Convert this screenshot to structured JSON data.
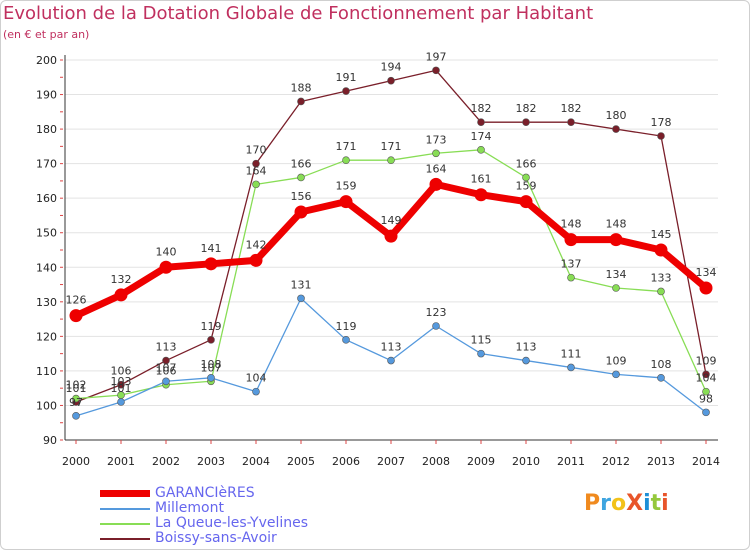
{
  "header": {
    "title": "Evolution de la Dotation Globale de Fonctionnement par Habitant",
    "subtitle": "(en € et par an)"
  },
  "logo": {
    "text": "ProXiti",
    "colors": [
      "#f08a1e",
      "#3fa5e0",
      "#f2c21a",
      "#e8552a",
      "#1e8fd6",
      "#95c83c",
      "#e8552a"
    ]
  },
  "chart_data": {
    "type": "line",
    "x": [
      "2000",
      "2001",
      "2002",
      "2003",
      "2004",
      "2005",
      "2006",
      "2007",
      "2008",
      "2009",
      "2010",
      "2011",
      "2012",
      "2013",
      "2014"
    ],
    "ylim": [
      90,
      200
    ],
    "yticks": [
      90,
      100,
      110,
      120,
      130,
      140,
      150,
      160,
      170,
      180,
      190,
      200
    ],
    "grid": "horizontal",
    "legend": "bottom-left",
    "series": [
      {
        "name": "Boissy-sans-Avoir",
        "color": "#7a1f2a",
        "width": 1.3,
        "values": [
          101,
          106,
          113,
          119,
          170,
          188,
          191,
          194,
          197,
          182,
          182,
          182,
          180,
          178,
          109
        ]
      },
      {
        "name": "La Queue-les-Yvelines",
        "color": "#88dd55",
        "width": 1.3,
        "values": [
          102,
          103,
          106,
          107,
          164,
          166,
          171,
          171,
          173,
          174,
          166,
          137,
          134,
          133,
          104
        ]
      },
      {
        "name": "Millemont",
        "color": "#5599dd",
        "width": 1.3,
        "values": [
          97,
          101,
          107,
          108,
          104,
          131,
          119,
          113,
          123,
          115,
          113,
          111,
          109,
          108,
          98
        ]
      },
      {
        "name": "GARANCIèRES",
        "color": "#ee0000",
        "width": 7,
        "values": [
          126,
          132,
          140,
          141,
          142,
          156,
          159,
          149,
          164,
          161,
          159,
          148,
          148,
          145,
          134
        ]
      }
    ]
  }
}
